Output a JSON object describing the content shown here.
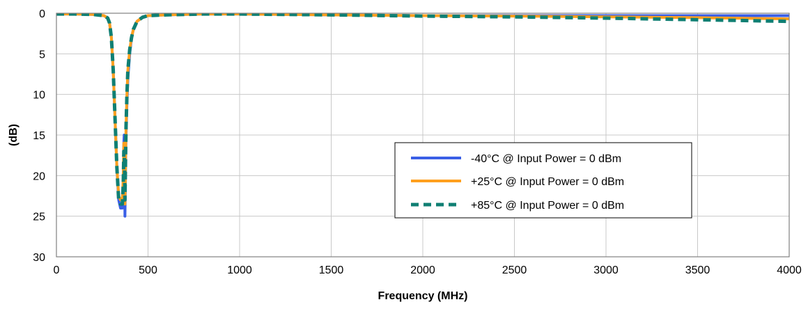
{
  "chart_data": {
    "type": "line",
    "title": "",
    "xlabel": "Frequency (MHz)",
    "ylabel": "(dB)",
    "xlim": [
      0,
      4000
    ],
    "ylim": [
      0,
      30
    ],
    "y_inverted": true,
    "x_ticks": [
      0,
      500,
      1000,
      1500,
      2000,
      2500,
      3000,
      3500,
      4000
    ],
    "y_ticks": [
      0,
      5,
      10,
      15,
      20,
      25,
      30
    ],
    "grid": true,
    "legend_position": "center-right",
    "series": [
      {
        "name": "-40°C @  Input Power = 0 dBm",
        "color": "#3a5fe6",
        "style": "solid",
        "x": [
          0,
          100,
          200,
          260,
          280,
          290,
          300,
          310,
          320,
          330,
          340,
          350,
          360,
          365,
          368,
          370,
          372,
          374,
          376,
          378,
          380,
          385,
          390,
          400,
          410,
          420,
          440,
          470,
          500,
          600,
          800,
          1000,
          1500,
          2000,
          2500,
          3000,
          3500,
          4000
        ],
        "y": [
          0.1,
          0.1,
          0.15,
          0.3,
          0.6,
          1.2,
          3,
          7,
          13,
          19,
          23,
          24,
          24,
          22,
          16,
          15,
          17,
          25,
          22,
          18,
          15,
          11,
          8,
          5,
          3,
          2,
          1,
          0.5,
          0.3,
          0.2,
          0.1,
          0.1,
          0.2,
          0.3,
          0.3,
          0.3,
          0.3,
          0.3
        ]
      },
      {
        "name": "+25°C @  Input Power = 0 dBm",
        "color": "#ffa01e",
        "style": "solid",
        "x": [
          0,
          100,
          200,
          260,
          280,
          290,
          300,
          310,
          320,
          330,
          340,
          350,
          360,
          365,
          368,
          370,
          372,
          374,
          376,
          378,
          380,
          385,
          390,
          400,
          410,
          420,
          440,
          470,
          500,
          600,
          800,
          1000,
          1500,
          2000,
          2500,
          3000,
          3500,
          4000
        ],
        "y": [
          0.1,
          0.1,
          0.15,
          0.3,
          0.6,
          1.2,
          3,
          7,
          13,
          19,
          22.5,
          23,
          23,
          20,
          16,
          16,
          18,
          23.5,
          21,
          17,
          14,
          10,
          7,
          4.5,
          3,
          2,
          1,
          0.5,
          0.3,
          0.2,
          0.1,
          0.1,
          0.2,
          0.3,
          0.35,
          0.45,
          0.55,
          0.7
        ]
      },
      {
        "name": "+85°C @  Input Power = 0 dBm",
        "color": "#0f7f73",
        "style": "dashed",
        "x": [
          0,
          100,
          200,
          260,
          280,
          290,
          300,
          310,
          320,
          330,
          340,
          350,
          360,
          365,
          368,
          370,
          372,
          374,
          376,
          378,
          380,
          385,
          390,
          400,
          410,
          420,
          440,
          470,
          500,
          600,
          800,
          1000,
          1500,
          2000,
          2500,
          3000,
          3500,
          4000
        ],
        "y": [
          0.1,
          0.1,
          0.15,
          0.3,
          0.6,
          1.2,
          3,
          7,
          13,
          19,
          23,
          23.5,
          23.5,
          21,
          17,
          17,
          19,
          23,
          20,
          17,
          14,
          10,
          7,
          4.5,
          3,
          2,
          1,
          0.5,
          0.3,
          0.2,
          0.1,
          0.1,
          0.2,
          0.35,
          0.45,
          0.6,
          0.8,
          1.0
        ]
      }
    ]
  }
}
